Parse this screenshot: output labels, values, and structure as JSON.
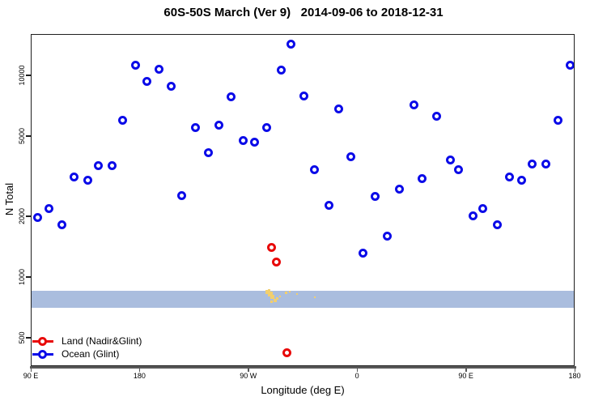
{
  "title": "60S-50S March (Ver 9)   2014-09-06 to 2018-12-31",
  "chart_data": {
    "type": "scatter",
    "title": "60S-50S March (Ver 9)   2014-09-06 to 2018-12-31",
    "xlabel": "Longitude (deg E)",
    "ylabel": "N Total",
    "x_scale": "linear",
    "y_scale": "log",
    "x_domain": [
      90,
      540
    ],
    "y_domain": [
      361,
      16030
    ],
    "grid": false,
    "legend_position": "bottom-left-inside",
    "x_ticks": [
      {
        "value": 90,
        "label": "90 E"
      },
      {
        "value": 180,
        "label": "180"
      },
      {
        "value": 270,
        "label": "90 W"
      },
      {
        "value": 360,
        "label": "0"
      },
      {
        "value": 450,
        "label": "90 E"
      },
      {
        "value": 540,
        "label": "180"
      }
    ],
    "y_ticks": [
      {
        "value": 500,
        "label": "500"
      },
      {
        "value": 1000,
        "label": "1000"
      },
      {
        "value": 2000,
        "label": "2000"
      },
      {
        "value": 5000,
        "label": "5000"
      },
      {
        "value": 10000,
        "label": "10000"
      }
    ],
    "band": {
      "y_min": 700,
      "y_max": 850,
      "color": "#aabdde"
    },
    "colors": {
      "ocean": "#0b0be8",
      "land": "#e80909",
      "speck": "#f2cf6e",
      "axis": "#585858",
      "frame": "#1f1f1f"
    },
    "legend": [
      {
        "label": "Land (Nadir&Glint)",
        "color": "#e80909"
      },
      {
        "label": "Ocean (Glint)",
        "color": "#0b0be8"
      }
    ],
    "series": [
      {
        "name": "Ocean (Glint)",
        "marker": "open-circle",
        "color": "#0b0be8",
        "points": [
          {
            "x": 177,
            "y": 11200
          },
          {
            "x": 196,
            "y": 10700
          },
          {
            "x": 186,
            "y": 9300
          },
          {
            "x": 206,
            "y": 8800
          },
          {
            "x": 166,
            "y": 6000
          },
          {
            "x": 226,
            "y": 5500
          },
          {
            "x": 237,
            "y": 4150
          },
          {
            "x": 146,
            "y": 3580
          },
          {
            "x": 157,
            "y": 3580
          },
          {
            "x": 126,
            "y": 3120
          },
          {
            "x": 137,
            "y": 3010
          },
          {
            "x": 215,
            "y": 2520
          },
          {
            "x": 305,
            "y": 14300
          },
          {
            "x": 297,
            "y": 10600
          },
          {
            "x": 256,
            "y": 7800
          },
          {
            "x": 316,
            "y": 7900
          },
          {
            "x": 345,
            "y": 6800
          },
          {
            "x": 246,
            "y": 5650
          },
          {
            "x": 285,
            "y": 5530
          },
          {
            "x": 266,
            "y": 4770
          },
          {
            "x": 275,
            "y": 4640
          },
          {
            "x": 355,
            "y": 3930
          },
          {
            "x": 325,
            "y": 3390
          },
          {
            "x": 375,
            "y": 2500
          },
          {
            "x": 536,
            "y": 11200
          },
          {
            "x": 407,
            "y": 7160
          },
          {
            "x": 426,
            "y": 6240
          },
          {
            "x": 526,
            "y": 6000
          },
          {
            "x": 437,
            "y": 3820
          },
          {
            "x": 444,
            "y": 3390
          },
          {
            "x": 505,
            "y": 3620
          },
          {
            "x": 516,
            "y": 3620
          },
          {
            "x": 414,
            "y": 3060
          },
          {
            "x": 486,
            "y": 3120
          },
          {
            "x": 496,
            "y": 3010
          },
          {
            "x": 395,
            "y": 2720
          },
          {
            "x": 337,
            "y": 2260
          },
          {
            "x": 385,
            "y": 1600
          },
          {
            "x": 365,
            "y": 1310
          },
          {
            "x": 105,
            "y": 2190
          },
          {
            "x": 96,
            "y": 1980
          },
          {
            "x": 116,
            "y": 1810
          },
          {
            "x": 456,
            "y": 2000
          },
          {
            "x": 464,
            "y": 2190
          },
          {
            "x": 476,
            "y": 1810
          }
        ]
      },
      {
        "name": "Land (Nadir&Glint)",
        "marker": "open-circle",
        "color": "#e80909",
        "points": [
          {
            "x": 289,
            "y": 1400
          },
          {
            "x": 293,
            "y": 1190
          },
          {
            "x": 302,
            "y": 420
          }
        ]
      },
      {
        "name": "low-count land marks",
        "marker": "pixel-speck",
        "color": "#f2cf6e",
        "points": [
          {
            "x": 286,
            "y": 845,
            "s": 5
          },
          {
            "x": 288,
            "y": 820,
            "s": 6
          },
          {
            "x": 290,
            "y": 795,
            "s": 5
          },
          {
            "x": 292,
            "y": 765,
            "s": 4
          },
          {
            "x": 289,
            "y": 750,
            "s": 3
          },
          {
            "x": 294,
            "y": 780,
            "s": 3
          },
          {
            "x": 287,
            "y": 858,
            "s": 3
          },
          {
            "x": 296,
            "y": 800,
            "s": 2
          },
          {
            "x": 301,
            "y": 835,
            "s": 3
          },
          {
            "x": 304,
            "y": 845,
            "s": 2
          },
          {
            "x": 310,
            "y": 822,
            "s": 2
          },
          {
            "x": 325,
            "y": 790,
            "s": 2
          }
        ]
      }
    ]
  }
}
